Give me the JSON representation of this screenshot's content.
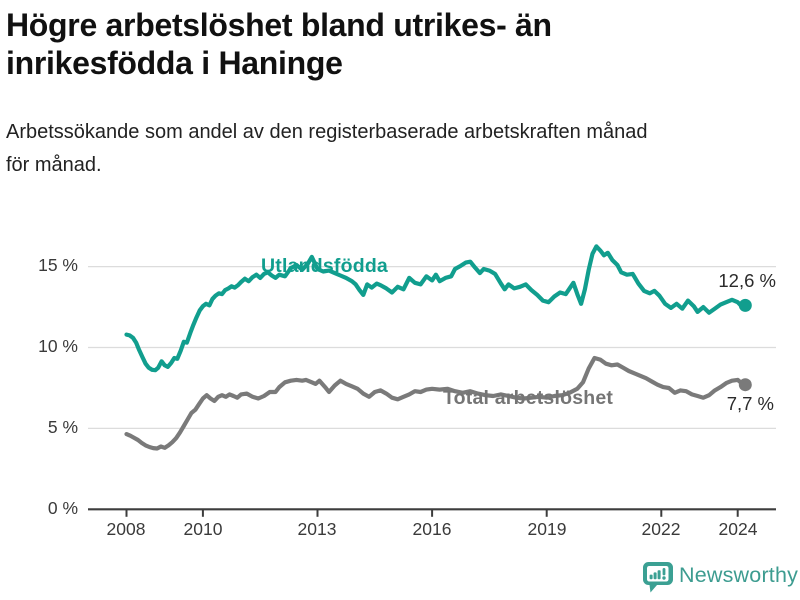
{
  "header": {
    "title_lines": [
      "Högre arbetslöshet bland utrikes- än",
      "inrikesfödda i Haninge"
    ],
    "subtitle_lines": [
      "Arbetssökande som andel av den registerbaserade arbetskraften månad",
      "för månad."
    ]
  },
  "footer": {
    "brand_name": "Newsworthy"
  },
  "colors": {
    "foreign_born": "#119e8e",
    "total": "#7a7a7a",
    "grid": "#dcdcdc",
    "axis": "#3d3d3d",
    "brand": "#3ba093",
    "brand_text": "#3d9c90"
  },
  "chart_data": {
    "type": "line",
    "title": "Högre arbetslöshet bland utrikes- än inrikesfödda i Haninge",
    "subtitle": "Arbetssökande som andel av den registerbaserade arbetskraften månad för månad.",
    "unit": "%",
    "grid": "horizontal",
    "legend_position": "inline-labels",
    "xlim": [
      2007.9,
      2024.45
    ],
    "ylim": [
      0,
      16.5
    ],
    "y_ticks": [
      {
        "value": 0,
        "label": "0 %"
      },
      {
        "value": 5,
        "label": "5 %"
      },
      {
        "value": 10,
        "label": "10 %"
      },
      {
        "value": 15,
        "label": "15 %"
      }
    ],
    "x_ticks": [
      {
        "year": 2008,
        "label": "2008"
      },
      {
        "year": 2010,
        "label": "2010"
      },
      {
        "year": 2013,
        "label": "2013"
      },
      {
        "year": 2016,
        "label": "2016"
      },
      {
        "year": 2019,
        "label": "2019"
      },
      {
        "year": 2022,
        "label": "2022"
      },
      {
        "year": 2024,
        "label": "2024"
      }
    ],
    "series": [
      {
        "name": "Utlandsfödda",
        "color": "#119e8e",
        "end_label": "12,6 %",
        "last_value": 12.6,
        "points": [
          [
            2008.0,
            10.8
          ],
          [
            2008.08,
            10.75
          ],
          [
            2008.17,
            10.6
          ],
          [
            2008.25,
            10.3
          ],
          [
            2008.33,
            9.85
          ],
          [
            2008.42,
            9.4
          ],
          [
            2008.5,
            9.0
          ],
          [
            2008.58,
            8.75
          ],
          [
            2008.67,
            8.62
          ],
          [
            2008.75,
            8.6
          ],
          [
            2008.83,
            8.75
          ],
          [
            2008.92,
            9.15
          ],
          [
            2009.0,
            8.9
          ],
          [
            2009.08,
            8.8
          ],
          [
            2009.17,
            9.05
          ],
          [
            2009.25,
            9.35
          ],
          [
            2009.33,
            9.3
          ],
          [
            2009.42,
            9.8
          ],
          [
            2009.5,
            10.35
          ],
          [
            2009.58,
            10.3
          ],
          [
            2009.67,
            10.9
          ],
          [
            2009.75,
            11.4
          ],
          [
            2009.83,
            11.85
          ],
          [
            2009.92,
            12.3
          ],
          [
            2010.0,
            12.55
          ],
          [
            2010.08,
            12.7
          ],
          [
            2010.17,
            12.6
          ],
          [
            2010.25,
            13.0
          ],
          [
            2010.33,
            13.2
          ],
          [
            2010.42,
            13.35
          ],
          [
            2010.5,
            13.3
          ],
          [
            2010.58,
            13.55
          ],
          [
            2010.67,
            13.65
          ],
          [
            2010.75,
            13.78
          ],
          [
            2010.83,
            13.7
          ],
          [
            2010.92,
            13.85
          ],
          [
            2011.0,
            14.05
          ],
          [
            2011.1,
            14.25
          ],
          [
            2011.2,
            14.1
          ],
          [
            2011.3,
            14.35
          ],
          [
            2011.4,
            14.5
          ],
          [
            2011.5,
            14.3
          ],
          [
            2011.6,
            14.55
          ],
          [
            2011.7,
            14.65
          ],
          [
            2011.8,
            14.45
          ],
          [
            2011.9,
            14.3
          ],
          [
            2012.0,
            14.5
          ],
          [
            2012.15,
            14.4
          ],
          [
            2012.3,
            14.9
          ],
          [
            2012.45,
            15.1
          ],
          [
            2012.6,
            14.8
          ],
          [
            2012.75,
            15.2
          ],
          [
            2012.85,
            15.6
          ],
          [
            2013.0,
            14.85
          ],
          [
            2013.15,
            14.7
          ],
          [
            2013.3,
            14.75
          ],
          [
            2013.45,
            14.6
          ],
          [
            2013.6,
            14.45
          ],
          [
            2013.75,
            14.3
          ],
          [
            2013.9,
            14.1
          ],
          [
            2014.0,
            13.9
          ],
          [
            2014.1,
            13.55
          ],
          [
            2014.2,
            13.25
          ],
          [
            2014.3,
            13.9
          ],
          [
            2014.42,
            13.7
          ],
          [
            2014.55,
            13.95
          ],
          [
            2014.65,
            13.85
          ],
          [
            2014.8,
            13.65
          ],
          [
            2014.95,
            13.4
          ],
          [
            2015.1,
            13.75
          ],
          [
            2015.25,
            13.6
          ],
          [
            2015.4,
            14.3
          ],
          [
            2015.55,
            14.0
          ],
          [
            2015.7,
            13.9
          ],
          [
            2015.85,
            14.4
          ],
          [
            2016.0,
            14.15
          ],
          [
            2016.1,
            14.5
          ],
          [
            2016.2,
            14.1
          ],
          [
            2016.35,
            14.3
          ],
          [
            2016.5,
            14.4
          ],
          [
            2016.6,
            14.85
          ],
          [
            2016.75,
            15.05
          ],
          [
            2016.88,
            15.25
          ],
          [
            2017.0,
            15.3
          ],
          [
            2017.12,
            14.95
          ],
          [
            2017.25,
            14.6
          ],
          [
            2017.35,
            14.85
          ],
          [
            2017.5,
            14.75
          ],
          [
            2017.65,
            14.55
          ],
          [
            2017.8,
            13.95
          ],
          [
            2017.9,
            13.6
          ],
          [
            2018.0,
            13.9
          ],
          [
            2018.15,
            13.65
          ],
          [
            2018.3,
            13.75
          ],
          [
            2018.45,
            13.9
          ],
          [
            2018.6,
            13.55
          ],
          [
            2018.75,
            13.25
          ],
          [
            2018.9,
            12.9
          ],
          [
            2019.05,
            12.8
          ],
          [
            2019.2,
            13.15
          ],
          [
            2019.35,
            13.4
          ],
          [
            2019.5,
            13.3
          ],
          [
            2019.6,
            13.65
          ],
          [
            2019.7,
            14.0
          ],
          [
            2019.8,
            13.3
          ],
          [
            2019.9,
            12.7
          ],
          [
            2020.0,
            13.6
          ],
          [
            2020.1,
            14.8
          ],
          [
            2020.2,
            15.8
          ],
          [
            2020.3,
            16.25
          ],
          [
            2020.4,
            16.0
          ],
          [
            2020.5,
            15.7
          ],
          [
            2020.6,
            15.85
          ],
          [
            2020.72,
            15.4
          ],
          [
            2020.85,
            15.1
          ],
          [
            2020.95,
            14.65
          ],
          [
            2021.1,
            14.5
          ],
          [
            2021.25,
            14.55
          ],
          [
            2021.4,
            13.95
          ],
          [
            2021.55,
            13.5
          ],
          [
            2021.7,
            13.35
          ],
          [
            2021.82,
            13.5
          ],
          [
            2021.95,
            13.2
          ],
          [
            2022.1,
            12.7
          ],
          [
            2022.25,
            12.45
          ],
          [
            2022.4,
            12.7
          ],
          [
            2022.55,
            12.4
          ],
          [
            2022.7,
            12.9
          ],
          [
            2022.85,
            12.55
          ],
          [
            2022.95,
            12.2
          ],
          [
            2023.1,
            12.5
          ],
          [
            2023.25,
            12.15
          ],
          [
            2023.4,
            12.4
          ],
          [
            2023.55,
            12.65
          ],
          [
            2023.7,
            12.8
          ],
          [
            2023.85,
            12.95
          ],
          [
            2024.0,
            12.8
          ],
          [
            2024.1,
            12.55
          ],
          [
            2024.2,
            12.6
          ]
        ]
      },
      {
        "name": "Total arbetslöshet",
        "color": "#7a7a7a",
        "end_label": "7,7 %",
        "last_value": 7.7,
        "points": [
          [
            2008.0,
            4.65
          ],
          [
            2008.1,
            4.55
          ],
          [
            2008.2,
            4.42
          ],
          [
            2008.3,
            4.28
          ],
          [
            2008.4,
            4.1
          ],
          [
            2008.5,
            3.95
          ],
          [
            2008.6,
            3.85
          ],
          [
            2008.7,
            3.78
          ],
          [
            2008.8,
            3.76
          ],
          [
            2008.9,
            3.88
          ],
          [
            2009.0,
            3.8
          ],
          [
            2009.1,
            3.95
          ],
          [
            2009.2,
            4.15
          ],
          [
            2009.3,
            4.4
          ],
          [
            2009.4,
            4.75
          ],
          [
            2009.5,
            5.15
          ],
          [
            2009.6,
            5.55
          ],
          [
            2009.7,
            5.95
          ],
          [
            2009.8,
            6.15
          ],
          [
            2009.9,
            6.5
          ],
          [
            2010.0,
            6.85
          ],
          [
            2010.1,
            7.05
          ],
          [
            2010.2,
            6.85
          ],
          [
            2010.3,
            6.7
          ],
          [
            2010.4,
            6.95
          ],
          [
            2010.5,
            7.05
          ],
          [
            2010.6,
            6.95
          ],
          [
            2010.7,
            7.1
          ],
          [
            2010.8,
            7.0
          ],
          [
            2010.9,
            6.9
          ],
          [
            2011.0,
            7.1
          ],
          [
            2011.15,
            7.15
          ],
          [
            2011.3,
            6.95
          ],
          [
            2011.45,
            6.85
          ],
          [
            2011.6,
            7.0
          ],
          [
            2011.75,
            7.25
          ],
          [
            2011.9,
            7.25
          ],
          [
            2012.0,
            7.55
          ],
          [
            2012.15,
            7.85
          ],
          [
            2012.3,
            7.95
          ],
          [
            2012.45,
            8.0
          ],
          [
            2012.6,
            7.95
          ],
          [
            2012.7,
            8.0
          ],
          [
            2012.85,
            7.85
          ],
          [
            2012.95,
            7.75
          ],
          [
            2013.05,
            7.95
          ],
          [
            2013.2,
            7.55
          ],
          [
            2013.3,
            7.25
          ],
          [
            2013.45,
            7.65
          ],
          [
            2013.6,
            7.95
          ],
          [
            2013.75,
            7.75
          ],
          [
            2013.9,
            7.6
          ],
          [
            2014.05,
            7.45
          ],
          [
            2014.2,
            7.15
          ],
          [
            2014.35,
            6.95
          ],
          [
            2014.5,
            7.25
          ],
          [
            2014.65,
            7.35
          ],
          [
            2014.8,
            7.15
          ],
          [
            2014.95,
            6.9
          ],
          [
            2015.1,
            6.8
          ],
          [
            2015.25,
            6.95
          ],
          [
            2015.4,
            7.1
          ],
          [
            2015.55,
            7.3
          ],
          [
            2015.7,
            7.25
          ],
          [
            2015.85,
            7.4
          ],
          [
            2016.0,
            7.45
          ],
          [
            2016.2,
            7.4
          ],
          [
            2016.4,
            7.45
          ],
          [
            2016.6,
            7.3
          ],
          [
            2016.8,
            7.2
          ],
          [
            2017.0,
            7.3
          ],
          [
            2017.2,
            7.15
          ],
          [
            2017.4,
            7.05
          ],
          [
            2017.6,
            7.0
          ],
          [
            2017.8,
            7.1
          ],
          [
            2018.0,
            7.0
          ],
          [
            2018.2,
            6.9
          ],
          [
            2018.4,
            6.85
          ],
          [
            2018.6,
            6.9
          ],
          [
            2018.8,
            6.95
          ],
          [
            2019.0,
            6.9
          ],
          [
            2019.2,
            7.0
          ],
          [
            2019.4,
            7.05
          ],
          [
            2019.6,
            7.2
          ],
          [
            2019.8,
            7.45
          ],
          [
            2019.95,
            7.85
          ],
          [
            2020.1,
            8.7
          ],
          [
            2020.25,
            9.35
          ],
          [
            2020.4,
            9.25
          ],
          [
            2020.55,
            9.0
          ],
          [
            2020.7,
            8.9
          ],
          [
            2020.85,
            8.95
          ],
          [
            2021.0,
            8.75
          ],
          [
            2021.15,
            8.55
          ],
          [
            2021.3,
            8.4
          ],
          [
            2021.45,
            8.25
          ],
          [
            2021.6,
            8.1
          ],
          [
            2021.75,
            7.9
          ],
          [
            2021.9,
            7.7
          ],
          [
            2022.05,
            7.55
          ],
          [
            2022.2,
            7.5
          ],
          [
            2022.35,
            7.2
          ],
          [
            2022.5,
            7.35
          ],
          [
            2022.65,
            7.3
          ],
          [
            2022.8,
            7.1
          ],
          [
            2022.95,
            7.0
          ],
          [
            2023.1,
            6.9
          ],
          [
            2023.25,
            7.05
          ],
          [
            2023.4,
            7.35
          ],
          [
            2023.55,
            7.55
          ],
          [
            2023.7,
            7.8
          ],
          [
            2023.85,
            7.95
          ],
          [
            2024.0,
            8.0
          ],
          [
            2024.1,
            7.8
          ],
          [
            2024.2,
            7.7
          ]
        ]
      }
    ]
  }
}
